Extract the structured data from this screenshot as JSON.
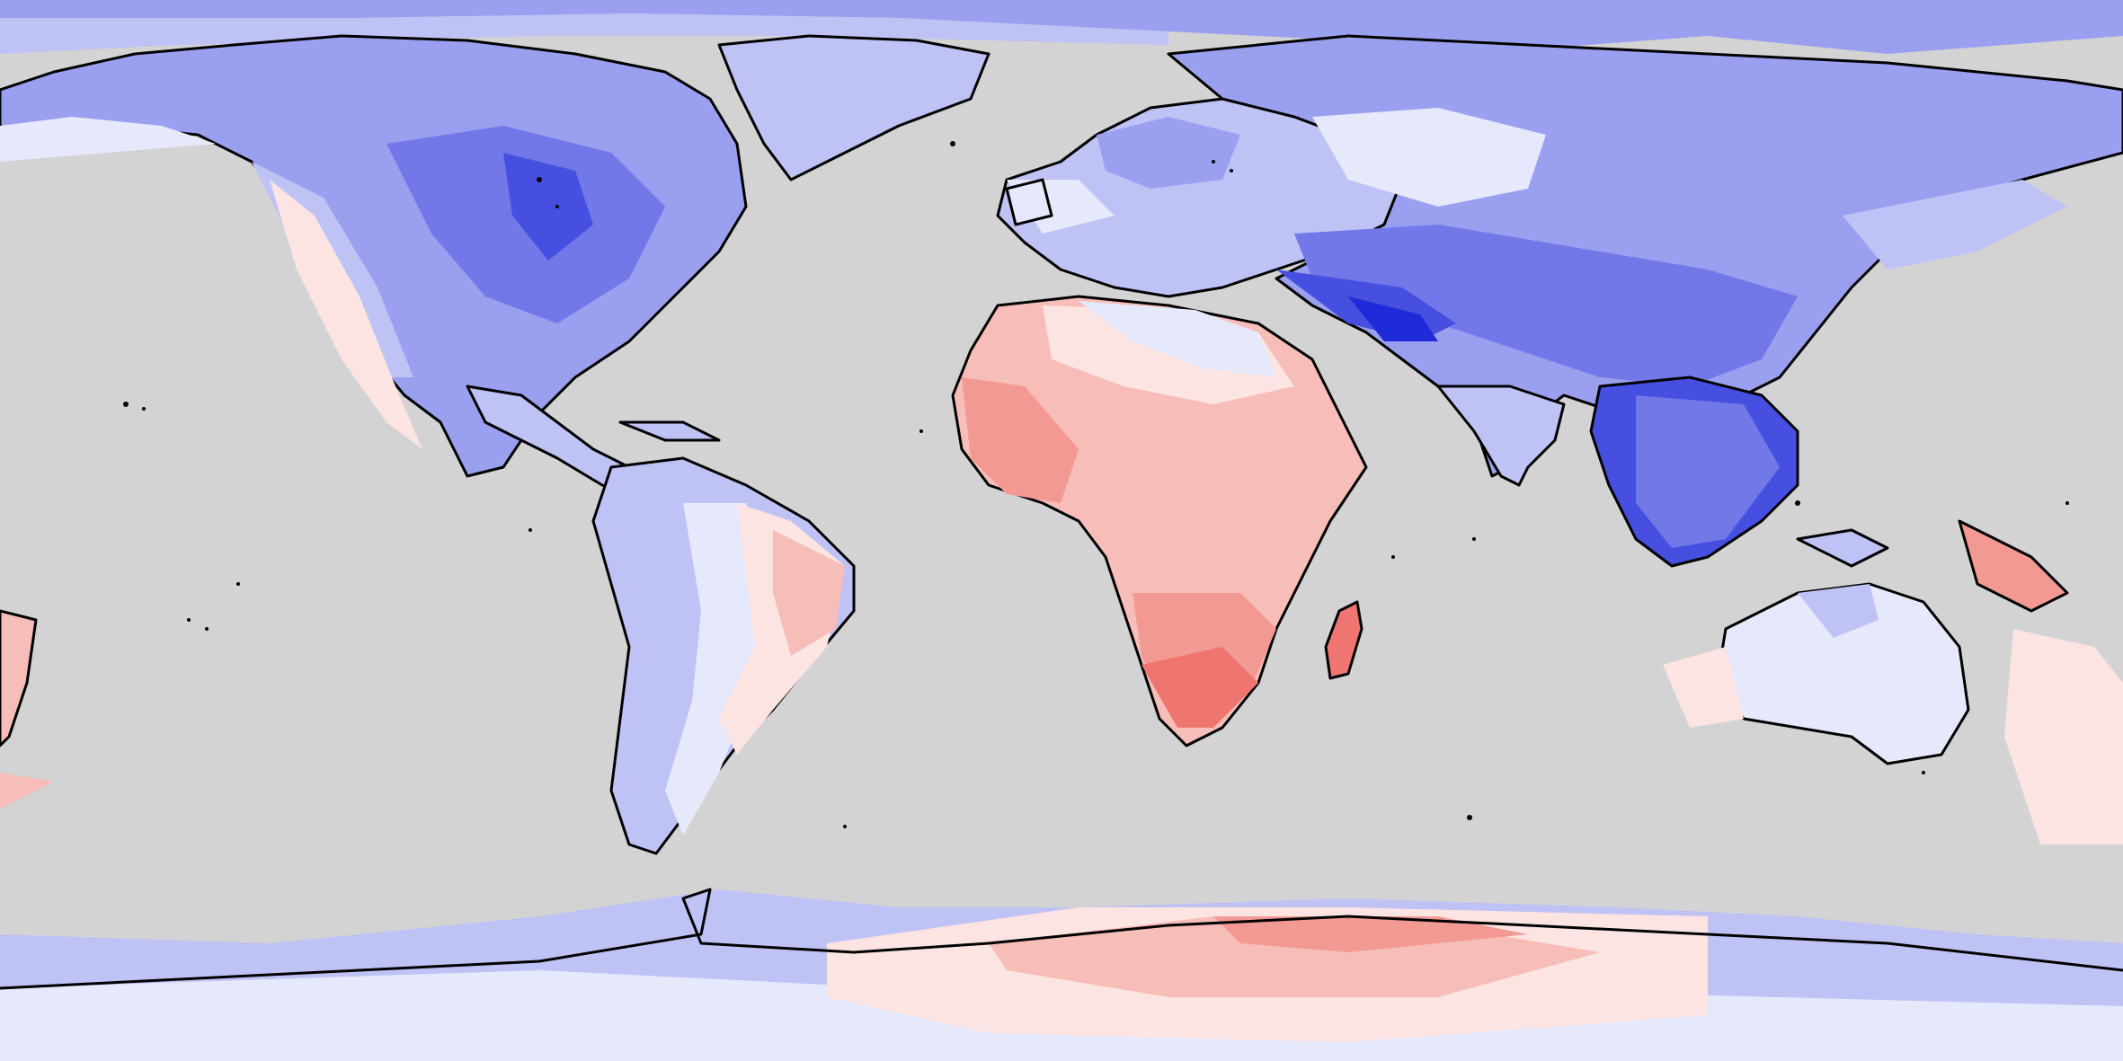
{
  "map": {
    "projection": "equirectangular",
    "ocean_color": "#d3d3d3",
    "coastline_color": "#000000",
    "grid": false,
    "legend": false,
    "colors": {
      "blue_1": "#e6e8fb",
      "blue_2": "#bfc2f5",
      "blue_3": "#9aa0ef",
      "blue_4": "#7278e8",
      "blue_5": "#464fe0",
      "blue_6": "#1f2ad8",
      "red_1": "#fbe4e2",
      "red_2": "#f7bdb8",
      "red_3": "#f29993",
      "red_4": "#ee7570"
    },
    "regions": [
      "north-america",
      "greenland",
      "central-america",
      "south-america",
      "europe",
      "africa",
      "madagascar",
      "asia",
      "india",
      "southeast-asia",
      "australia",
      "new-zealand",
      "antarctica",
      "arctic-sea-ice"
    ]
  }
}
